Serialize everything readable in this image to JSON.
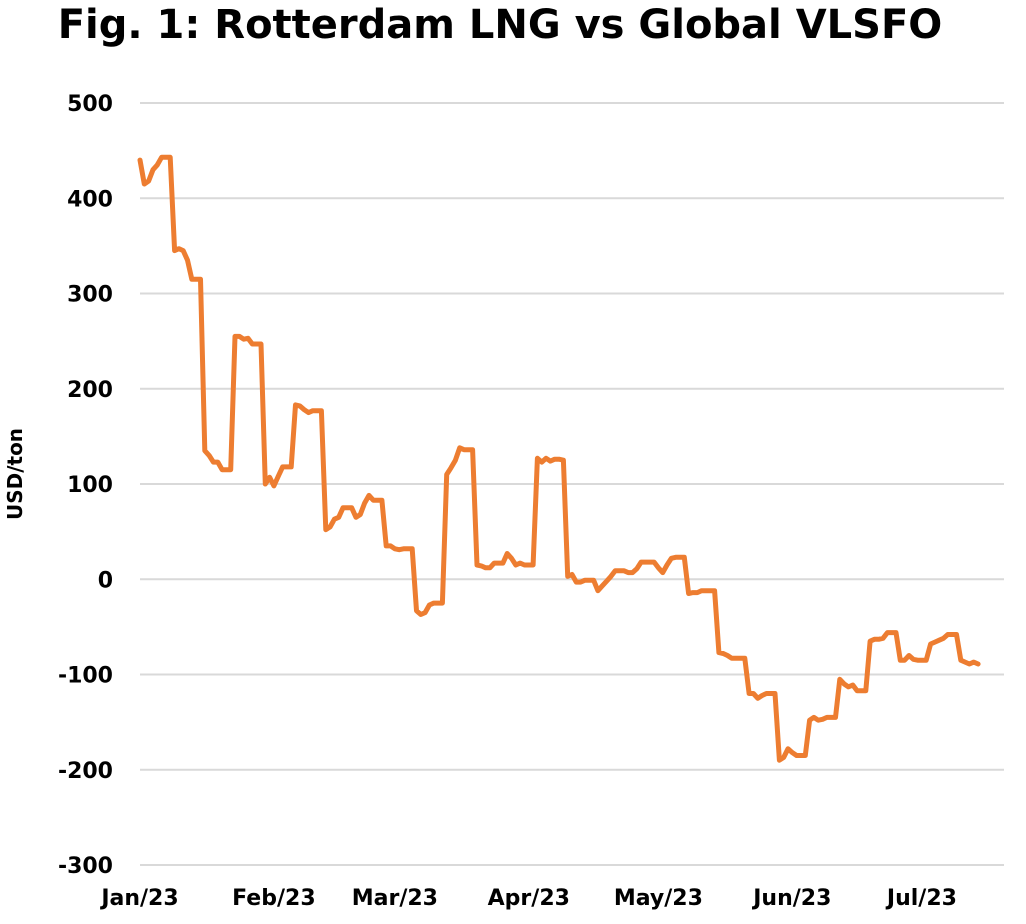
{
  "chart_data": {
    "type": "line",
    "title": "Fig. 1: Rotterdam LNG vs Global VLSFO",
    "xlabel": "",
    "ylabel": "USD/ton",
    "ylim": [
      -300,
      500
    ],
    "yticks": [
      "500",
      "400",
      "300",
      "200",
      "100",
      "0",
      "-100",
      "-200",
      "-300"
    ],
    "ytick_values": [
      500,
      400,
      300,
      200,
      100,
      0,
      -100,
      -200,
      -300
    ],
    "xticks": [
      "Jan/23",
      "Feb/23",
      "Mar/23",
      "Apr/23",
      "May/23",
      "Jun/23",
      "Jul/23"
    ],
    "xtick_values": [
      "2023-01-01",
      "2023-02-01",
      "2023-03-01",
      "2023-04-01",
      "2023-05-01",
      "2023-06-01",
      "2023-07-01"
    ],
    "xlim": [
      "2023-01-01",
      "2023-07-20"
    ],
    "grid": "horizontal",
    "legend": "none",
    "series": [
      {
        "color": "#ed7d31",
        "points": [
          [
            "2023-01-01",
            440
          ],
          [
            "2023-01-02",
            415
          ],
          [
            "2023-01-03",
            418
          ],
          [
            "2023-01-04",
            430
          ],
          [
            "2023-01-05",
            435
          ],
          [
            "2023-01-06",
            443
          ],
          [
            "2023-01-07",
            443
          ],
          [
            "2023-01-08",
            443
          ],
          [
            "2023-01-09",
            345
          ],
          [
            "2023-01-10",
            347
          ],
          [
            "2023-01-11",
            345
          ],
          [
            "2023-01-12",
            335
          ],
          [
            "2023-01-13",
            315
          ],
          [
            "2023-01-14",
            315
          ],
          [
            "2023-01-15",
            315
          ],
          [
            "2023-01-16",
            135
          ],
          [
            "2023-01-17",
            130
          ],
          [
            "2023-01-18",
            123
          ],
          [
            "2023-01-19",
            123
          ],
          [
            "2023-01-20",
            115
          ],
          [
            "2023-01-21",
            115
          ],
          [
            "2023-01-22",
            115
          ],
          [
            "2023-01-23",
            255
          ],
          [
            "2023-01-24",
            255
          ],
          [
            "2023-01-25",
            252
          ],
          [
            "2023-01-26",
            253
          ],
          [
            "2023-01-27",
            247
          ],
          [
            "2023-01-28",
            247
          ],
          [
            "2023-01-29",
            247
          ],
          [
            "2023-01-30",
            100
          ],
          [
            "2023-01-31",
            107
          ],
          [
            "2023-02-01",
            98
          ],
          [
            "2023-02-02",
            108
          ],
          [
            "2023-02-03",
            118
          ],
          [
            "2023-02-04",
            118
          ],
          [
            "2023-02-05",
            118
          ],
          [
            "2023-02-06",
            183
          ],
          [
            "2023-02-07",
            182
          ],
          [
            "2023-02-08",
            178
          ],
          [
            "2023-02-09",
            175
          ],
          [
            "2023-02-10",
            177
          ],
          [
            "2023-02-11",
            177
          ],
          [
            "2023-02-12",
            177
          ],
          [
            "2023-02-13",
            52
          ],
          [
            "2023-02-14",
            55
          ],
          [
            "2023-02-15",
            63
          ],
          [
            "2023-02-16",
            65
          ],
          [
            "2023-02-17",
            75
          ],
          [
            "2023-02-18",
            75
          ],
          [
            "2023-02-19",
            75
          ],
          [
            "2023-02-20",
            65
          ],
          [
            "2023-02-21",
            68
          ],
          [
            "2023-02-22",
            80
          ],
          [
            "2023-02-23",
            88
          ],
          [
            "2023-02-24",
            83
          ],
          [
            "2023-02-25",
            83
          ],
          [
            "2023-02-26",
            83
          ],
          [
            "2023-02-27",
            35
          ],
          [
            "2023-02-28",
            35
          ],
          [
            "2023-03-01",
            32
          ],
          [
            "2023-03-02",
            31
          ],
          [
            "2023-03-03",
            32
          ],
          [
            "2023-03-04",
            32
          ],
          [
            "2023-03-05",
            32
          ],
          [
            "2023-03-06",
            -33
          ],
          [
            "2023-03-07",
            -37
          ],
          [
            "2023-03-08",
            -35
          ],
          [
            "2023-03-09",
            -27
          ],
          [
            "2023-03-10",
            -25
          ],
          [
            "2023-03-11",
            -25
          ],
          [
            "2023-03-12",
            -25
          ],
          [
            "2023-03-13",
            110
          ],
          [
            "2023-03-14",
            117
          ],
          [
            "2023-03-15",
            125
          ],
          [
            "2023-03-16",
            138
          ],
          [
            "2023-03-17",
            136
          ],
          [
            "2023-03-18",
            136
          ],
          [
            "2023-03-19",
            136
          ],
          [
            "2023-03-20",
            15
          ],
          [
            "2023-03-21",
            14
          ],
          [
            "2023-03-22",
            12
          ],
          [
            "2023-03-23",
            12
          ],
          [
            "2023-03-24",
            17
          ],
          [
            "2023-03-25",
            17
          ],
          [
            "2023-03-26",
            17
          ],
          [
            "2023-03-27",
            27
          ],
          [
            "2023-03-28",
            22
          ],
          [
            "2023-03-29",
            15
          ],
          [
            "2023-03-30",
            17
          ],
          [
            "2023-03-31",
            15
          ],
          [
            "2023-04-01",
            15
          ],
          [
            "2023-04-02",
            15
          ],
          [
            "2023-04-03",
            127
          ],
          [
            "2023-04-04",
            123
          ],
          [
            "2023-04-05",
            127
          ],
          [
            "2023-04-06",
            124
          ],
          [
            "2023-04-07",
            126
          ],
          [
            "2023-04-08",
            126
          ],
          [
            "2023-04-09",
            125
          ],
          [
            "2023-04-10",
            3
          ],
          [
            "2023-04-11",
            5
          ],
          [
            "2023-04-12",
            -3
          ],
          [
            "2023-04-13",
            -3
          ],
          [
            "2023-04-14",
            -1
          ],
          [
            "2023-04-15",
            -1
          ],
          [
            "2023-04-16",
            -1
          ],
          [
            "2023-04-17",
            -12
          ],
          [
            "2023-04-18",
            -7
          ],
          [
            "2023-04-19",
            -2
          ],
          [
            "2023-04-20",
            3
          ],
          [
            "2023-04-21",
            9
          ],
          [
            "2023-04-22",
            9
          ],
          [
            "2023-04-23",
            9
          ],
          [
            "2023-04-24",
            7
          ],
          [
            "2023-04-25",
            7
          ],
          [
            "2023-04-26",
            11
          ],
          [
            "2023-04-27",
            18
          ],
          [
            "2023-04-28",
            18
          ],
          [
            "2023-04-29",
            18
          ],
          [
            "2023-04-30",
            18
          ],
          [
            "2023-05-01",
            12
          ],
          [
            "2023-05-02",
            7
          ],
          [
            "2023-05-03",
            15
          ],
          [
            "2023-05-04",
            22
          ],
          [
            "2023-05-05",
            23
          ],
          [
            "2023-05-06",
            23
          ],
          [
            "2023-05-07",
            23
          ],
          [
            "2023-05-08",
            -15
          ],
          [
            "2023-05-09",
            -14
          ],
          [
            "2023-05-10",
            -14
          ],
          [
            "2023-05-11",
            -12
          ],
          [
            "2023-05-12",
            -12
          ],
          [
            "2023-05-13",
            -12
          ],
          [
            "2023-05-14",
            -12
          ],
          [
            "2023-05-15",
            -77
          ],
          [
            "2023-05-16",
            -78
          ],
          [
            "2023-05-17",
            -80
          ],
          [
            "2023-05-18",
            -83
          ],
          [
            "2023-05-19",
            -83
          ],
          [
            "2023-05-20",
            -83
          ],
          [
            "2023-05-21",
            -83
          ],
          [
            "2023-05-22",
            -120
          ],
          [
            "2023-05-23",
            -120
          ],
          [
            "2023-05-24",
            -125
          ],
          [
            "2023-05-25",
            -122
          ],
          [
            "2023-05-26",
            -120
          ],
          [
            "2023-05-27",
            -120
          ],
          [
            "2023-05-28",
            -120
          ],
          [
            "2023-05-29",
            -190
          ],
          [
            "2023-05-30",
            -187
          ],
          [
            "2023-05-31",
            -178
          ],
          [
            "2023-06-01",
            -182
          ],
          [
            "2023-06-02",
            -185
          ],
          [
            "2023-06-03",
            -185
          ],
          [
            "2023-06-04",
            -185
          ],
          [
            "2023-06-05",
            -148
          ],
          [
            "2023-06-06",
            -145
          ],
          [
            "2023-06-07",
            -148
          ],
          [
            "2023-06-08",
            -147
          ],
          [
            "2023-06-09",
            -145
          ],
          [
            "2023-06-10",
            -145
          ],
          [
            "2023-06-11",
            -145
          ],
          [
            "2023-06-12",
            -105
          ],
          [
            "2023-06-13",
            -110
          ],
          [
            "2023-06-14",
            -113
          ],
          [
            "2023-06-15",
            -111
          ],
          [
            "2023-06-16",
            -117
          ],
          [
            "2023-06-17",
            -117
          ],
          [
            "2023-06-18",
            -117
          ],
          [
            "2023-06-19",
            -65
          ],
          [
            "2023-06-20",
            -63
          ],
          [
            "2023-06-21",
            -63
          ],
          [
            "2023-06-22",
            -62
          ],
          [
            "2023-06-23",
            -56
          ],
          [
            "2023-06-24",
            -56
          ],
          [
            "2023-06-25",
            -56
          ],
          [
            "2023-06-26",
            -85
          ],
          [
            "2023-06-27",
            -85
          ],
          [
            "2023-06-28",
            -80
          ],
          [
            "2023-06-29",
            -84
          ],
          [
            "2023-06-30",
            -85
          ],
          [
            "2023-07-01",
            -85
          ],
          [
            "2023-07-02",
            -85
          ],
          [
            "2023-07-03",
            -68
          ],
          [
            "2023-07-04",
            -66
          ],
          [
            "2023-07-05",
            -64
          ],
          [
            "2023-07-06",
            -62
          ],
          [
            "2023-07-07",
            -58
          ],
          [
            "2023-07-08",
            -58
          ],
          [
            "2023-07-09",
            -58
          ],
          [
            "2023-07-10",
            -85
          ],
          [
            "2023-07-11",
            -87
          ],
          [
            "2023-07-12",
            -89
          ],
          [
            "2023-07-13",
            -87
          ],
          [
            "2023-07-14",
            -89
          ]
        ]
      }
    ]
  }
}
